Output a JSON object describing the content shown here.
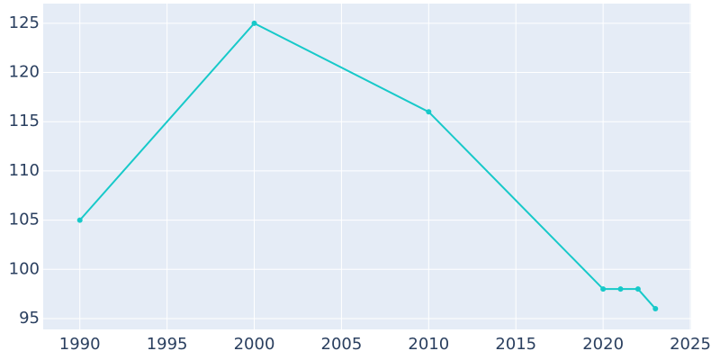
{
  "chart_data": {
    "type": "line",
    "x": [
      1990,
      2000,
      2010,
      2020,
      2021,
      2022,
      2023
    ],
    "series": [
      {
        "color": "#17c9c9",
        "values": [
          105,
          125,
          116,
          98,
          98,
          98,
          96
        ]
      }
    ],
    "xlim": [
      1987.9,
      2025.05
    ],
    "ylim": [
      93.9,
      127
    ],
    "xticks": [
      1990,
      1995,
      2000,
      2005,
      2010,
      2015,
      2020,
      2025
    ],
    "yticks": [
      95,
      100,
      105,
      110,
      115,
      120,
      125
    ],
    "grid": true,
    "plot_background": "#e5ecf6"
  }
}
